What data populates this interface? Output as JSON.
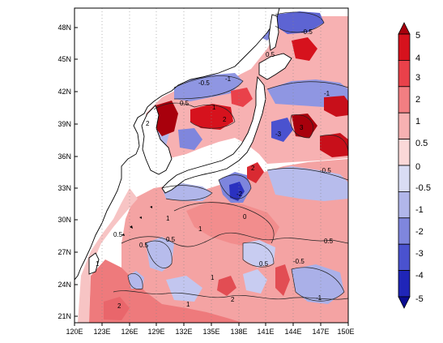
{
  "map": {
    "lat_labels": [
      "48N",
      "45N",
      "42N",
      "39N",
      "36N",
      "33N",
      "30N",
      "27N",
      "24N",
      "21N"
    ],
    "lon_labels": [
      "120E",
      "123E",
      "126E",
      "129E",
      "132E",
      "135E",
      "138E",
      "141E",
      "144E",
      "147E",
      "150E"
    ],
    "extent": {
      "lon_min": 120,
      "lon_max": 150,
      "lat_min": 20,
      "lat_max": 50
    },
    "contour_labels": [
      "-0.5",
      "-1",
      "0.5",
      "1",
      "2",
      "-2",
      "-3",
      "3",
      "0",
      "-0.5",
      "1",
      "2",
      "-1",
      "0.5",
      "2",
      "1",
      "0.5",
      "0.5",
      "1",
      "-0.5",
      "2",
      "1",
      "0.5",
      "-1",
      "-0.5",
      "0.5",
      "1",
      "0.5",
      "2"
    ]
  },
  "colorbar": {
    "labels": [
      "5",
      "4",
      "3",
      "2",
      "1",
      "0.5",
      "0",
      "-0.5",
      "-1",
      "-2",
      "-3",
      "-4",
      "-5"
    ],
    "colors": [
      "#a8000c",
      "#d6121d",
      "#e9414a",
      "#f27e82",
      "#f7b1b2",
      "#fbd8d8",
      "#d9dcf4",
      "#b1b6ea",
      "#7f86dd",
      "#4a52cf",
      "#1f25b8",
      "#0a0c92"
    ]
  }
}
